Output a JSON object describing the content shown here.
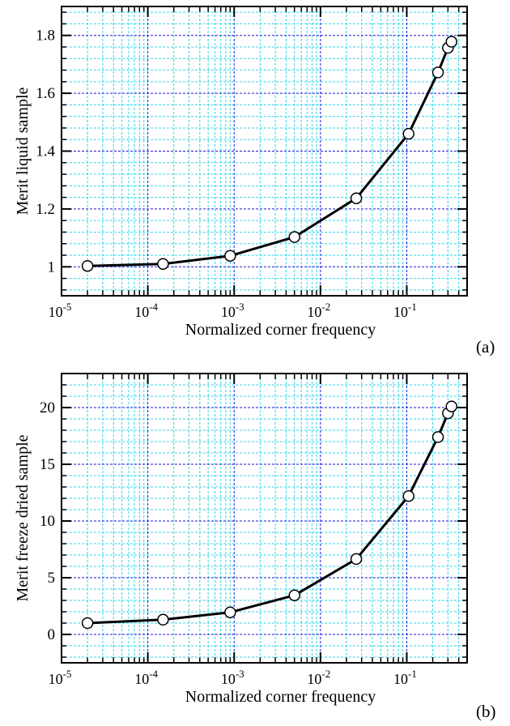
{
  "chart_data": [
    {
      "type": "line",
      "panel": "(a)",
      "xlabel": "Normalized corner frequency",
      "ylabel": "Merit liquid sample",
      "xscale": "log",
      "xlim": [
        1e-05,
        0.5
      ],
      "ylim": [
        0.9,
        1.9
      ],
      "x_ticks": [
        {
          "value": 1e-05,
          "base": "10",
          "exp": "-5"
        },
        {
          "value": 0.0001,
          "base": "10",
          "exp": "-4"
        },
        {
          "value": 0.001,
          "base": "10",
          "exp": "-3"
        },
        {
          "value": 0.01,
          "base": "10",
          "exp": "-2"
        },
        {
          "value": 0.1,
          "base": "10",
          "exp": "-1"
        }
      ],
      "y_ticks": [
        {
          "value": 1.0,
          "label": "1"
        },
        {
          "value": 1.2,
          "label": "1.2"
        },
        {
          "value": 1.4,
          "label": "1.4"
        },
        {
          "value": 1.6,
          "label": "1.6"
        },
        {
          "value": 1.8,
          "label": "1.8"
        }
      ],
      "grid": true,
      "x": [
        2e-05,
        0.00015,
        0.0009,
        0.005,
        0.026,
        0.105,
        0.23,
        0.3,
        0.33
      ],
      "y": [
        1.003,
        1.01,
        1.038,
        1.103,
        1.237,
        1.46,
        1.672,
        1.757,
        1.778
      ]
    },
    {
      "type": "line",
      "panel": "(b)",
      "xlabel": "Normalized corner frequency",
      "ylabel": "Merit freeze dried sample",
      "xscale": "log",
      "xlim": [
        1e-05,
        0.5
      ],
      "ylim": [
        -2.5,
        23
      ],
      "x_ticks": [
        {
          "value": 1e-05,
          "base": "10",
          "exp": "-5"
        },
        {
          "value": 0.0001,
          "base": "10",
          "exp": "-4"
        },
        {
          "value": 0.001,
          "base": "10",
          "exp": "-3"
        },
        {
          "value": 0.01,
          "base": "10",
          "exp": "-2"
        },
        {
          "value": 0.1,
          "base": "10",
          "exp": "-1"
        }
      ],
      "y_ticks": [
        {
          "value": 0,
          "label": "0"
        },
        {
          "value": 5,
          "label": "5"
        },
        {
          "value": 10,
          "label": "10"
        },
        {
          "value": 15,
          "label": "15"
        },
        {
          "value": 20,
          "label": "20"
        }
      ],
      "grid": true,
      "x": [
        2e-05,
        0.00015,
        0.0009,
        0.005,
        0.026,
        0.105,
        0.23,
        0.3,
        0.33
      ],
      "y": [
        1.0,
        1.3,
        1.95,
        3.45,
        6.65,
        12.2,
        17.4,
        19.5,
        20.1
      ]
    }
  ],
  "colors": {
    "major_grid": "#1a1ad6",
    "minor_grid": "#33d6e6",
    "line": "#000000",
    "marker_fill": "#ffffff"
  }
}
